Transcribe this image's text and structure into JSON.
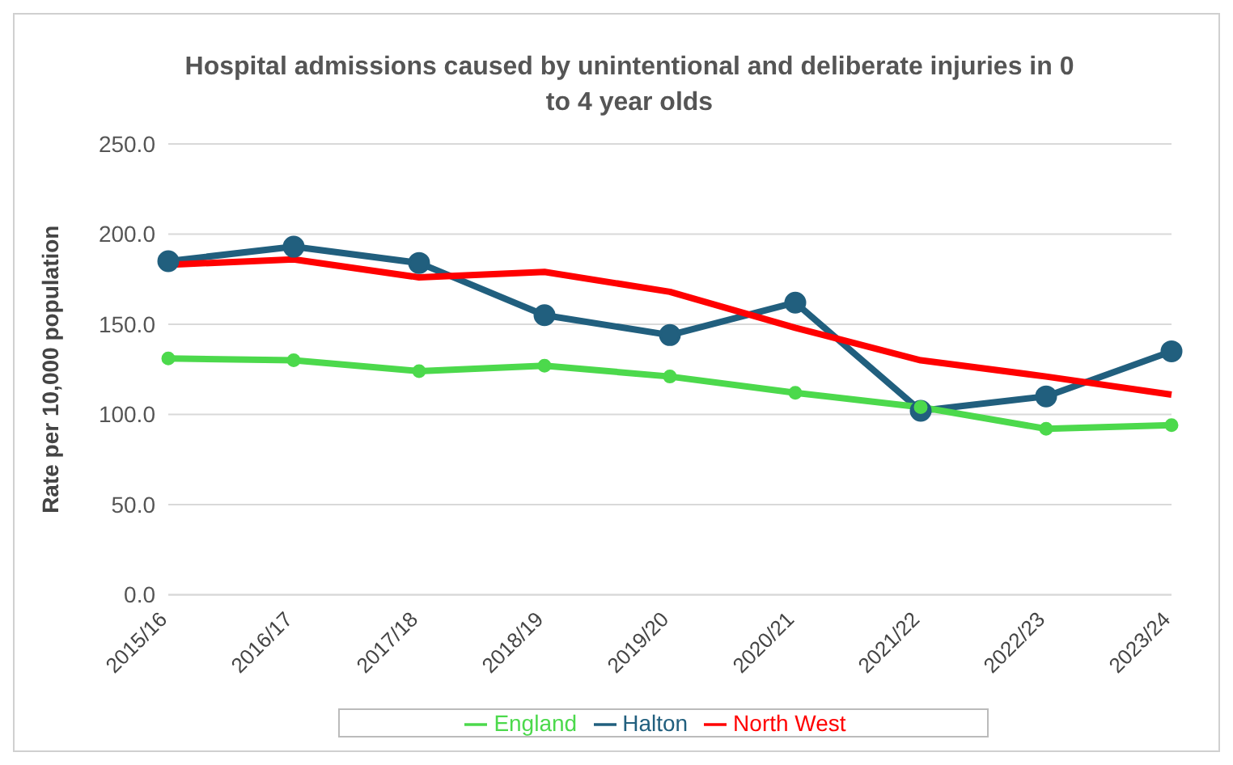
{
  "chart_data": {
    "type": "line",
    "title": "Hospital admissions caused by unintentional and deliberate injuries in 0 to 4 year olds",
    "ylabel": "Rate per 10,000 population",
    "categories": [
      "2015/16",
      "2016/17",
      "2017/18",
      "2018/19",
      "2019/20",
      "2020/21",
      "2021/22",
      "2022/23",
      "2023/24"
    ],
    "series": [
      {
        "name": "Halton",
        "color": "#215f7e",
        "marker": "circle",
        "values": [
          185,
          193,
          184,
          155,
          144,
          162,
          102,
          110,
          135
        ]
      },
      {
        "name": "North West",
        "color": "#ff0000",
        "marker": "none",
        "values": [
          183,
          186,
          176,
          179,
          168,
          148,
          130,
          121,
          111
        ]
      },
      {
        "name": "England",
        "color": "#4cd94c",
        "marker": "circle",
        "values": [
          131,
          130,
          124,
          127,
          121,
          112,
          104,
          92,
          94
        ]
      }
    ],
    "ylim": [
      0,
      250
    ],
    "yticks": [
      {
        "value": 0,
        "label": "0.0"
      },
      {
        "value": 50,
        "label": "50.0"
      },
      {
        "value": 100,
        "label": "100.0"
      },
      {
        "value": 150,
        "label": "150.0"
      },
      {
        "value": 200,
        "label": "200.0"
      },
      {
        "value": 250,
        "label": "250.0"
      }
    ],
    "grid": "y",
    "legend": "bottom"
  }
}
